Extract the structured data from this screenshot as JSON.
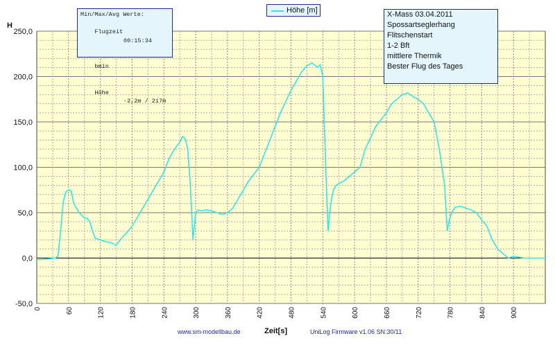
{
  "chart_data": {
    "type": "line",
    "xlabel": "Zeit[s]",
    "ylabel": "H",
    "xlim": [
      0,
      960
    ],
    "ylim": [
      -50,
      250
    ],
    "x_ticks": [
      "0",
      "60",
      "120",
      "180",
      "240",
      "300",
      "360",
      "420",
      "480",
      "540",
      "600",
      "660",
      "720",
      "780",
      "840",
      "900"
    ],
    "y_ticks": [
      "-50,0",
      "0,0",
      "50,0",
      "100,0",
      "150,0",
      "200,0",
      "250,0"
    ],
    "grid": true,
    "legend_position": "top-center",
    "series": [
      {
        "name": "Höhe [m]",
        "color": "#33e5e5",
        "x": [
          0,
          20,
          35,
          40,
          45,
          50,
          55,
          60,
          65,
          70,
          80,
          90,
          95,
          100,
          105,
          110,
          120,
          130,
          140,
          150,
          160,
          170,
          180,
          200,
          220,
          240,
          250,
          260,
          270,
          275,
          280,
          285,
          290,
          295,
          300,
          305,
          310,
          320,
          330,
          340,
          350,
          360,
          370,
          380,
          390,
          400,
          420,
          440,
          460,
          480,
          500,
          510,
          520,
          530,
          535,
          540,
          545,
          550,
          555,
          560,
          565,
          570,
          580,
          590,
          600,
          610,
          620,
          640,
          660,
          670,
          680,
          690,
          700,
          710,
          720,
          730,
          740,
          750,
          760,
          770,
          775,
          780,
          785,
          790,
          800,
          810,
          820,
          830,
          840,
          850,
          860,
          870,
          880,
          890,
          900,
          910,
          920,
          930,
          940,
          950,
          960
        ],
        "y": [
          -2,
          -1,
          0,
          2,
          30,
          62,
          73,
          75,
          74,
          60,
          50,
          44,
          44,
          40,
          30,
          22,
          20,
          18,
          17,
          14,
          22,
          28,
          35,
          55,
          75,
          95,
          110,
          120,
          128,
          134,
          132,
          120,
          80,
          20,
          50,
          53,
          52,
          53,
          52,
          50,
          48,
          50,
          55,
          65,
          75,
          85,
          100,
          130,
          160,
          185,
          205,
          212,
          215,
          210,
          213,
          200,
          110,
          30,
          60,
          75,
          80,
          82,
          85,
          90,
          95,
          100,
          120,
          145,
          160,
          170,
          175,
          180,
          182,
          178,
          175,
          170,
          160,
          150,
          120,
          80,
          30,
          45,
          52,
          56,
          57,
          55,
          53,
          50,
          42,
          35,
          20,
          10,
          5,
          0,
          2,
          1,
          0,
          0,
          0,
          0,
          0
        ]
      }
    ]
  },
  "legend": {
    "label": "Höhe [m]"
  },
  "stats_box": {
    "header": "Min/Max/Avg Werte:",
    "row1_label": "Flugzeit",
    "row1_value": "00:15:34",
    "row2_label": "bmin",
    "row3_label": "Höhe",
    "row3_value": "-2,2m / 217m"
  },
  "info_box": {
    "lines": [
      "X-Mass 03.04.2011",
      "Spossartseglerhang",
      "Flitschenstart",
      "1-2 Bft",
      "mittlere Thermik",
      "Bester Flug des Tages"
    ]
  },
  "footer": {
    "website": "www.sm-modellbau.de",
    "firmware": "UniLog Firmware v1.06 SN:30/11"
  },
  "colors": {
    "plot_background": "#ffffd2",
    "line": "#33e5e5",
    "box_background": "#e4f6fb",
    "box_border": "#1c2a8c",
    "footer_text": "#1c2aa0"
  }
}
